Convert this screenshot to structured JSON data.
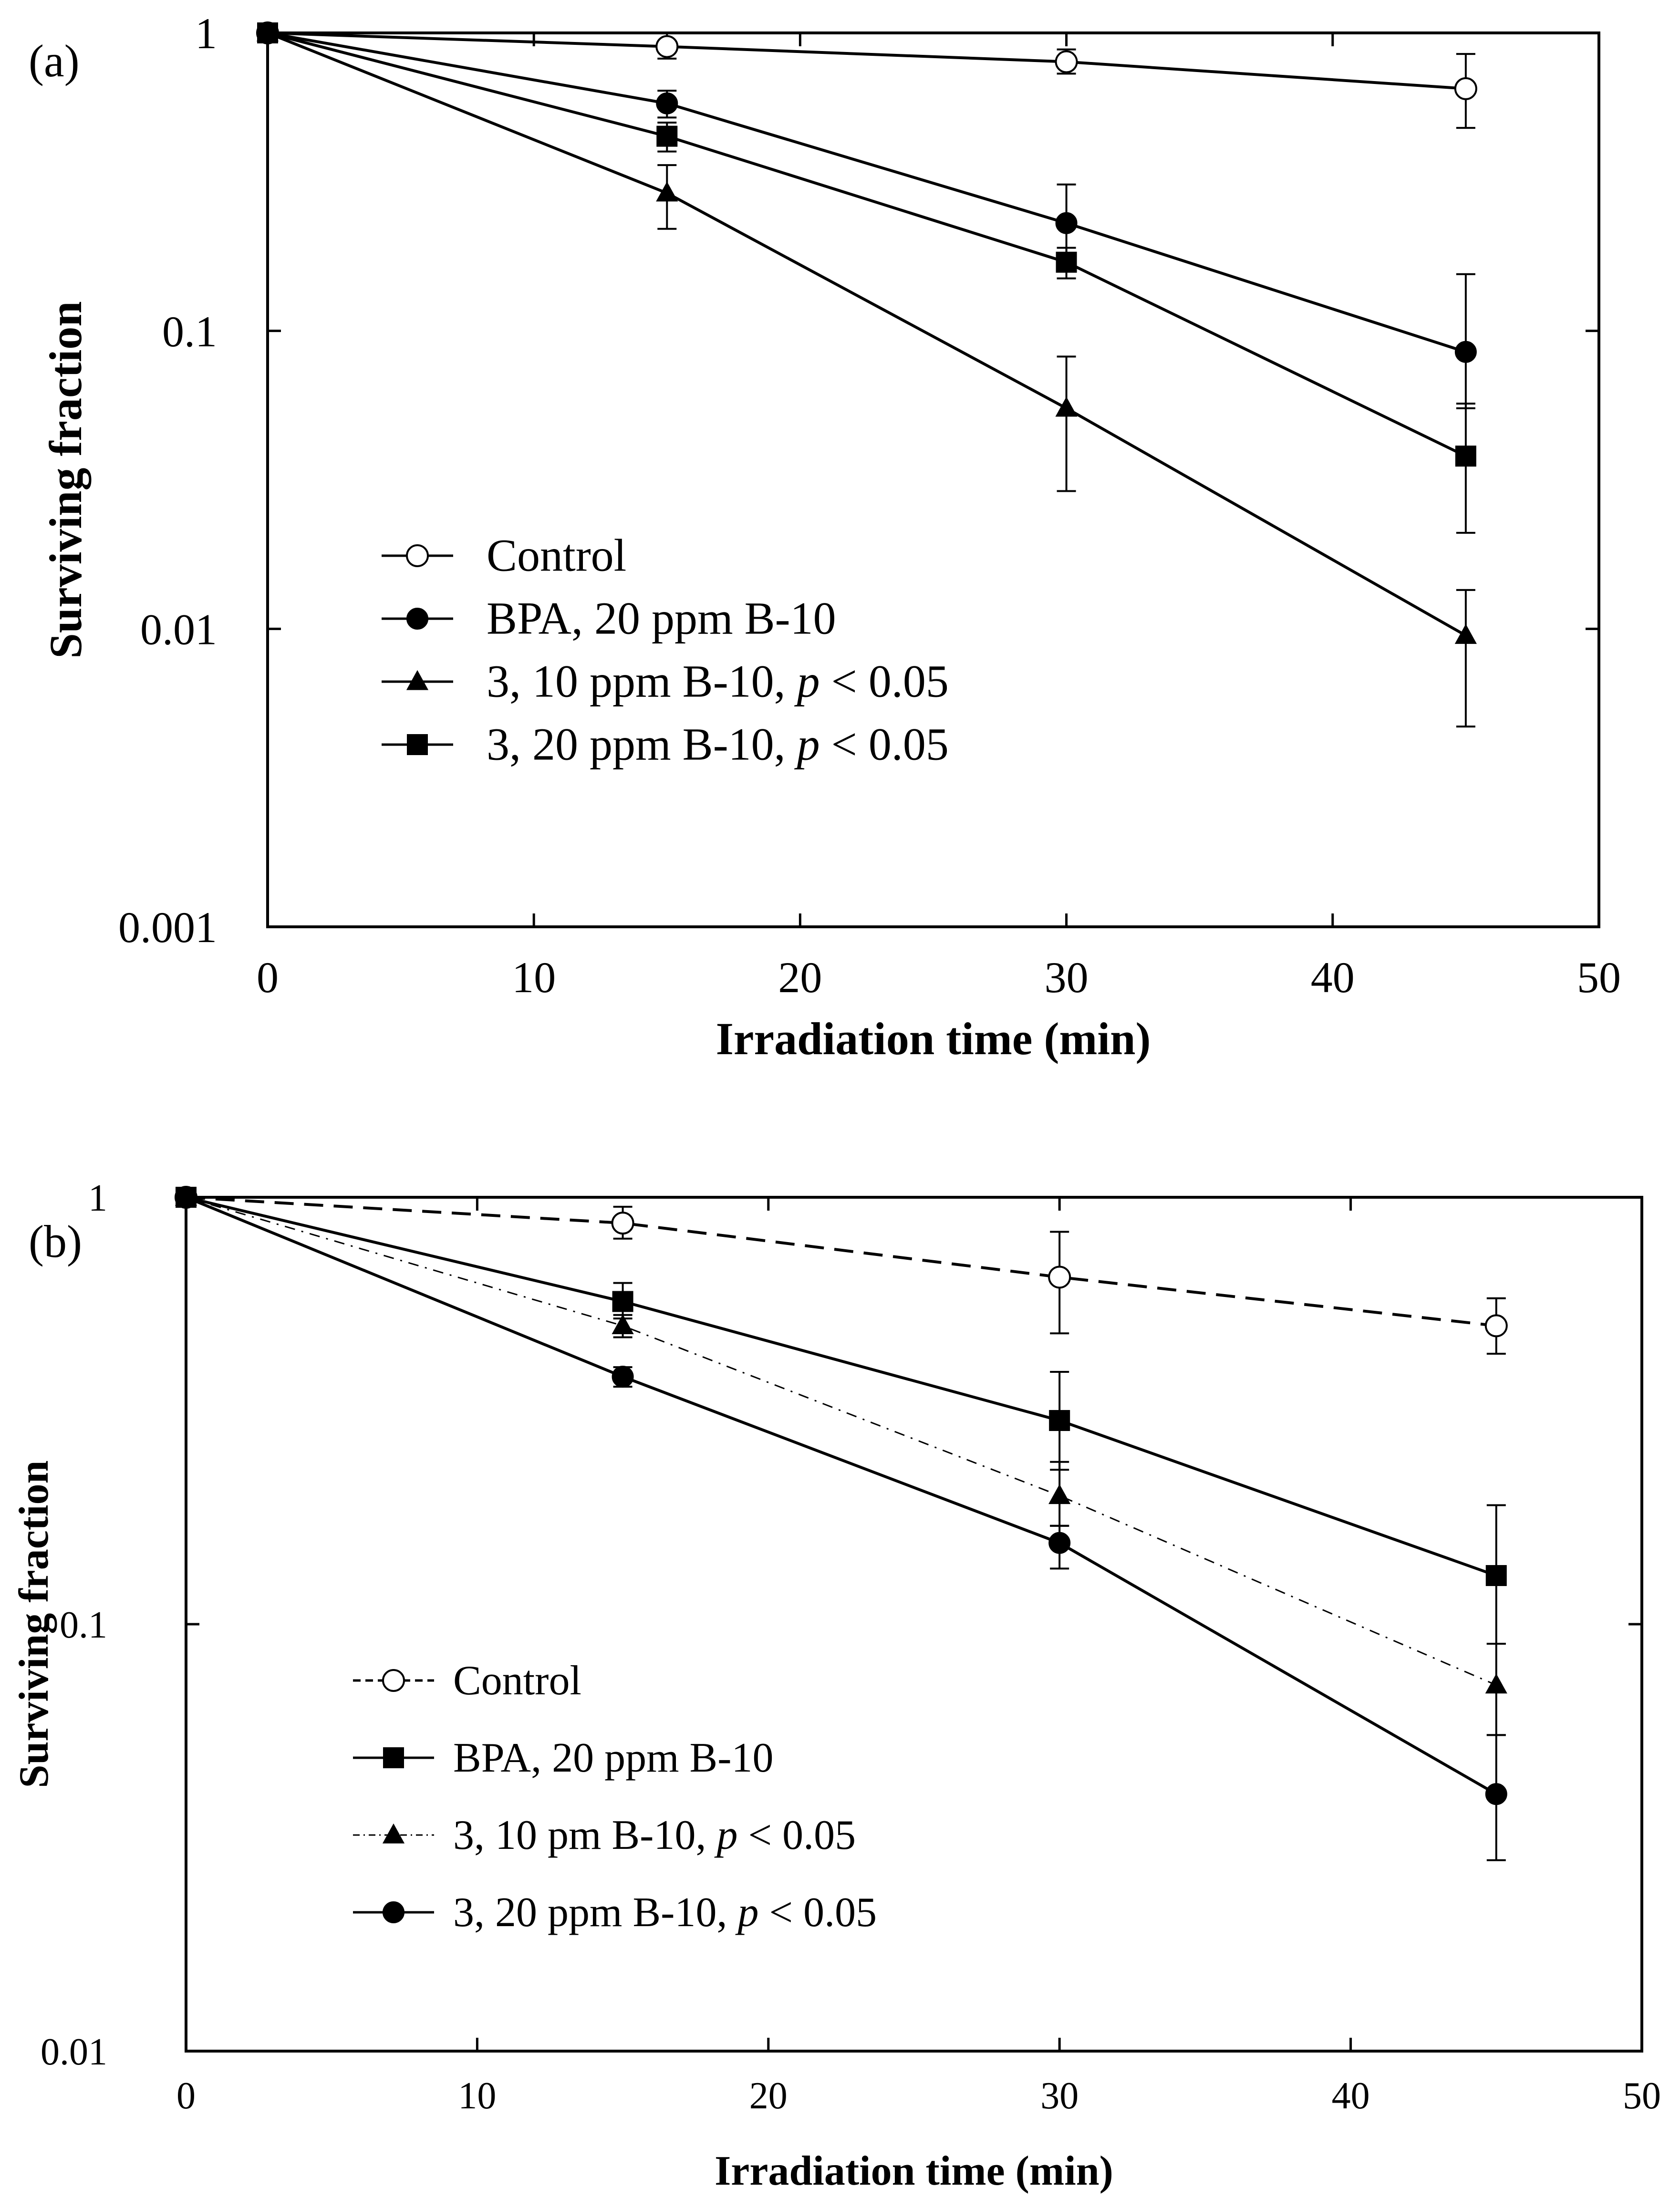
{
  "chart_data": [
    {
      "panel": "(a)",
      "type": "line",
      "xlabel": "Irradiation time (min)",
      "ylabel": "Surviving fraction",
      "xlim": [
        0,
        50
      ],
      "ylim": [
        0.001,
        1
      ],
      "yscale": "log",
      "xticks": [
        0,
        10,
        20,
        30,
        40,
        50
      ],
      "xtick_labels": [
        "0",
        "10",
        "20",
        "30",
        "40",
        "50"
      ],
      "yticks": [
        1,
        0.1,
        0.01,
        0.001
      ],
      "ytick_labels": [
        "1",
        "0.1",
        "0.01",
        "0.001"
      ],
      "legend_position": "center-left",
      "series": [
        {
          "name": "Control",
          "legend_label": "Control",
          "marker": "circle-open",
          "line": "solid",
          "x": [
            0,
            15,
            30,
            45
          ],
          "y": [
            1,
            0.9,
            0.8,
            0.65
          ],
          "err_low": [
            null,
            0.82,
            0.73,
            0.48
          ],
          "err_high": [
            null,
            1.0,
            0.88,
            0.85
          ]
        },
        {
          "name": "BPA, 20 ppm B-10",
          "legend_label": "BPA, 20 ppm B-10",
          "marker": "circle-filled",
          "line": "solid",
          "x": [
            0,
            15,
            30,
            45
          ],
          "y": [
            1,
            0.58,
            0.23,
            0.085
          ],
          "err_low": [
            null,
            0.52,
            0.18,
            0.055
          ],
          "err_high": [
            null,
            0.64,
            0.31,
            0.155
          ]
        },
        {
          "name": "3, 10 ppm B-10, p < 0.05",
          "legend_prefix": "3, 10 ppm B-10, ",
          "legend_p": "p",
          "legend_suffix": " < 0.05",
          "marker": "triangle-filled",
          "line": "solid",
          "x": [
            0,
            15,
            30,
            45
          ],
          "y": [
            1,
            0.29,
            0.055,
            0.0095
          ],
          "err_low": [
            null,
            0.22,
            0.029,
            0.0047
          ],
          "err_high": [
            null,
            0.36,
            0.082,
            0.0135
          ]
        },
        {
          "name": "3, 20 ppm B-10, p < 0.05",
          "legend_prefix": "3, 20 ppm B-10, ",
          "legend_p": "p",
          "legend_suffix": " < 0.05",
          "marker": "square-filled",
          "line": "solid",
          "x": [
            0,
            15,
            30,
            45
          ],
          "y": [
            1,
            0.45,
            0.17,
            0.038
          ],
          "err_low": [
            null,
            0.4,
            0.15,
            0.021
          ],
          "err_high": [
            null,
            0.5,
            0.19,
            0.057
          ]
        }
      ]
    },
    {
      "panel": "(b)",
      "type": "line",
      "xlabel": "Irradiation time (min)",
      "ylabel": "Surviving fraction",
      "xlim": [
        0,
        50
      ],
      "ylim": [
        0.01,
        1
      ],
      "yscale": "log",
      "xticks": [
        0,
        10,
        20,
        30,
        40,
        50
      ],
      "xtick_labels": [
        "0",
        "10",
        "20",
        "30",
        "40",
        "50"
      ],
      "yticks": [
        1,
        0.1,
        0.01
      ],
      "ytick_labels": [
        "1",
        "0.1",
        "0.01"
      ],
      "legend_position": "center-left",
      "series": [
        {
          "name": "Control",
          "legend_label": "Control",
          "marker": "circle-open",
          "line": "dashed",
          "x": [
            0,
            15,
            30,
            45
          ],
          "y": [
            1,
            0.87,
            0.65,
            0.5
          ],
          "err_low": [
            null,
            0.8,
            0.48,
            0.43
          ],
          "err_high": [
            null,
            0.95,
            0.83,
            0.58
          ]
        },
        {
          "name": "BPA, 20 ppm B-10",
          "legend_label": "BPA, 20 ppm B-10",
          "marker": "square-filled",
          "line": "solid",
          "x": [
            0,
            15,
            30,
            45
          ],
          "y": [
            1,
            0.57,
            0.3,
            0.13
          ],
          "err_low": [
            null,
            0.52,
            0.23,
            0.09
          ],
          "err_high": [
            null,
            0.63,
            0.39,
            0.19
          ]
        },
        {
          "name": "3, 10 pm B-10, p < 0.05",
          "legend_prefix": "3, 10 pm B-10, ",
          "legend_p": "p",
          "legend_suffix": " < 0.05",
          "marker": "triangle-filled",
          "line": "dashdot",
          "x": [
            0,
            15,
            30,
            45
          ],
          "y": [
            1,
            0.5,
            0.2,
            0.072
          ],
          "err_low": [
            null,
            0.47,
            0.17,
            0.055
          ],
          "err_high": [
            null,
            0.53,
            0.24,
            0.09
          ]
        },
        {
          "name": "3, 20 ppm B-10, p < 0.05",
          "legend_prefix": "3, 20 ppm B-10, ",
          "legend_p": "p",
          "legend_suffix": " < 0.05",
          "marker": "circle-filled",
          "line": "solid",
          "x": [
            0,
            15,
            30,
            45
          ],
          "y": [
            1,
            0.38,
            0.155,
            0.04
          ],
          "err_low": [
            null,
            0.36,
            0.135,
            0.028
          ],
          "err_high": [
            null,
            0.4,
            0.17,
            0.055
          ]
        }
      ]
    }
  ]
}
